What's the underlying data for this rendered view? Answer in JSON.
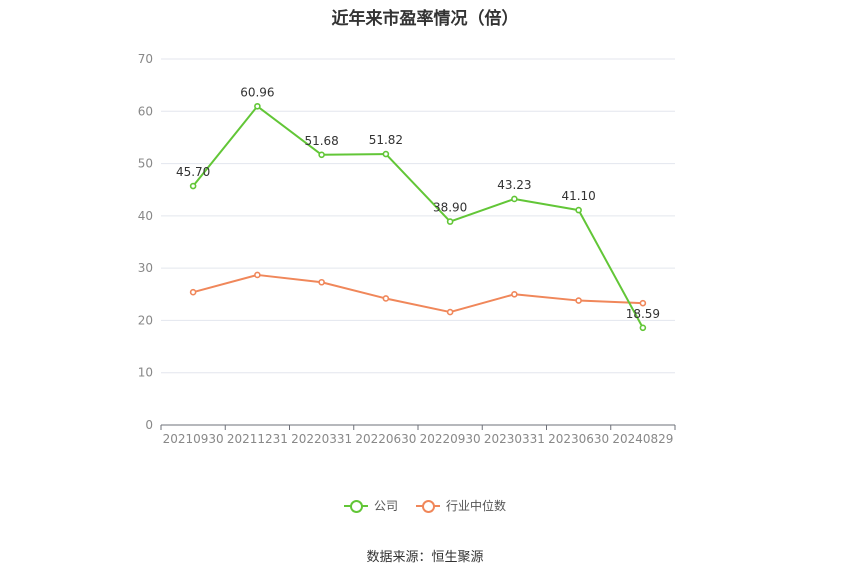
{
  "chart_data": {
    "type": "line",
    "title": "近年来市盈率情况（倍）",
    "categories": [
      "20210930",
      "20211231",
      "20220331",
      "20220630",
      "20220930",
      "20230331",
      "20230630",
      "20240829"
    ],
    "ylim": [
      0,
      70
    ],
    "yticks": [
      0,
      10,
      20,
      30,
      40,
      50,
      60,
      70
    ],
    "grid": true,
    "legend_position": "bottom",
    "series": [
      {
        "name": "公司",
        "color": "#62c637",
        "values": [
          45.7,
          60.96,
          51.68,
          51.82,
          38.9,
          43.23,
          41.1,
          18.59
        ],
        "labels": [
          "45.70",
          "60.96",
          "51.68",
          "51.82",
          "38.90",
          "43.23",
          "41.10",
          "18.59"
        ]
      },
      {
        "name": "行业中位数",
        "color": "#f0875a",
        "values": [
          25.4,
          28.7,
          27.3,
          24.2,
          21.6,
          25.0,
          23.8,
          23.3
        ]
      }
    ],
    "source": "数据来源：恒生聚源"
  }
}
